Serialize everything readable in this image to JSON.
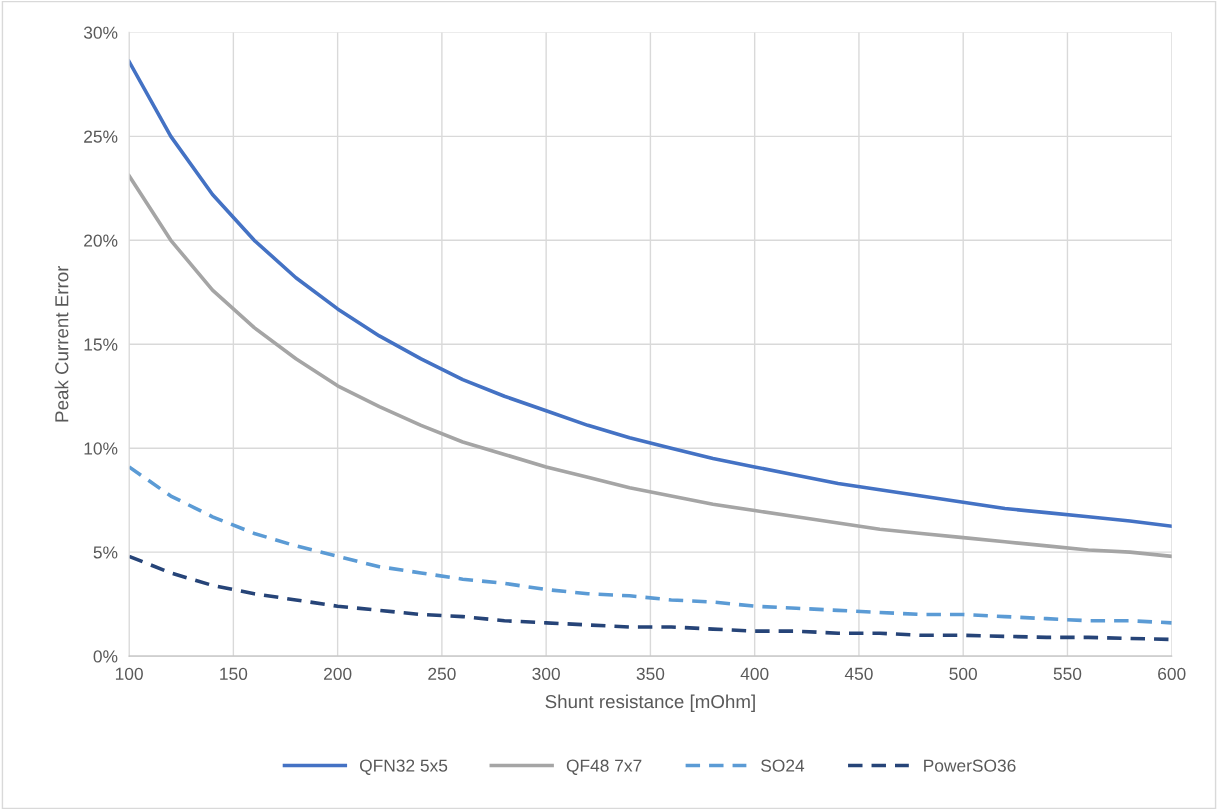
{
  "chart_data": {
    "type": "line",
    "xlabel": "Shunt resistance [mOhm]",
    "ylabel": "Peak Current Error",
    "x": [
      100,
      120,
      140,
      160,
      180,
      200,
      220,
      240,
      260,
      280,
      300,
      320,
      340,
      360,
      380,
      400,
      420,
      440,
      460,
      480,
      500,
      520,
      540,
      560,
      580,
      600
    ],
    "series": [
      {
        "name": "QFN32 5x5",
        "color": "#4472c4",
        "line_style": "solid",
        "values": [
          28.6,
          25.0,
          22.2,
          20.0,
          18.2,
          16.7,
          15.4,
          14.3,
          13.3,
          12.5,
          11.8,
          11.1,
          10.5,
          10.0,
          9.5,
          9.1,
          8.7,
          8.3,
          8.0,
          7.7,
          7.4,
          7.1,
          6.9,
          6.7,
          6.5,
          6.25
        ]
      },
      {
        "name": "QF48 7x7",
        "color": "#a5a5a5",
        "line_style": "solid",
        "values": [
          23.1,
          20.0,
          17.6,
          15.8,
          14.3,
          13.0,
          12.0,
          11.1,
          10.3,
          9.7,
          9.1,
          8.6,
          8.1,
          7.7,
          7.3,
          7.0,
          6.7,
          6.4,
          6.1,
          5.9,
          5.7,
          5.5,
          5.3,
          5.1,
          5.0,
          4.8
        ]
      },
      {
        "name": "SO24",
        "color": "#5b9bd5",
        "line_style": "dashed",
        "values": [
          9.1,
          7.7,
          6.7,
          5.9,
          5.3,
          4.8,
          4.3,
          4.0,
          3.7,
          3.5,
          3.2,
          3.0,
          2.9,
          2.7,
          2.6,
          2.4,
          2.3,
          2.2,
          2.1,
          2.0,
          2.0,
          1.9,
          1.8,
          1.7,
          1.7,
          1.6
        ]
      },
      {
        "name": "PowerSO36",
        "color": "#264478",
        "line_style": "dashed",
        "values": [
          4.8,
          4.0,
          3.4,
          3.0,
          2.7,
          2.4,
          2.2,
          2.0,
          1.9,
          1.7,
          1.6,
          1.5,
          1.4,
          1.4,
          1.3,
          1.2,
          1.2,
          1.1,
          1.1,
          1.0,
          1.0,
          0.95,
          0.9,
          0.9,
          0.85,
          0.8
        ]
      }
    ],
    "xlim": [
      100,
      600
    ],
    "xticks": [
      100,
      150,
      200,
      250,
      300,
      350,
      400,
      450,
      500,
      550,
      600
    ],
    "ylim": [
      0,
      30
    ],
    "yticks": [
      {
        "value": 0,
        "label": "0%"
      },
      {
        "value": 5,
        "label": "5%"
      },
      {
        "value": 10,
        "label": "10%"
      },
      {
        "value": 15,
        "label": "15%"
      },
      {
        "value": 20,
        "label": "20%"
      },
      {
        "value": 25,
        "label": "25%"
      },
      {
        "value": 30,
        "label": "30%"
      }
    ],
    "grid": true,
    "legend": "bottom",
    "marker": "none"
  }
}
